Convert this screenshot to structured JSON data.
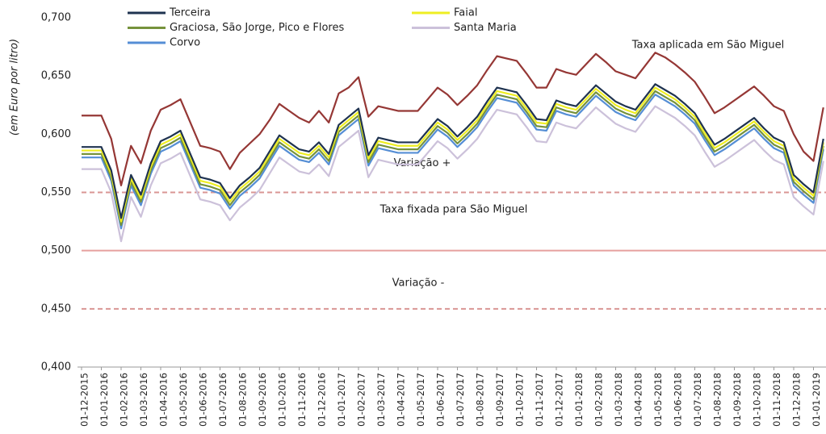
{
  "chart_data": {
    "type": "line",
    "y_label": "(em Euro por litro)",
    "categories": [
      "01-12-2015",
      null,
      "01-01-2016",
      null,
      "01-02-2016",
      null,
      "01-03-2016",
      null,
      "01-04-2016",
      null,
      "01-05-2016",
      null,
      "01-06-2016",
      null,
      "01-07-2016",
      null,
      "01-08-2016",
      null,
      "01-09-2016",
      null,
      "01-10-2016",
      null,
      "01-11-2016",
      null,
      "01-12-2016",
      null,
      "01-01-2017",
      null,
      "01-02-2017",
      null,
      "01-03-2017",
      null,
      "01-04-2017",
      null,
      "01-05-2017",
      null,
      "01-06-2017",
      null,
      "01-07-2017",
      null,
      "01-08-2017",
      null,
      "01-09-2017",
      null,
      "01-10-2017",
      null,
      "01-11-2017",
      null,
      "01-12-2017",
      null,
      "01-01-2018",
      null,
      "01-02-2018",
      null,
      "01-03-2018",
      null,
      "01-04-2018",
      null,
      "01-05-2018",
      null,
      "01-06-2018",
      null,
      "01-07-2018",
      null,
      "01-08-2018",
      null,
      "01-09-2018",
      null,
      "01-10-2018",
      null,
      "01-11-2018",
      null,
      "01-12-2018",
      null,
      "01-01-2019",
      null
    ],
    "series": [
      {
        "name": "Terceira",
        "color": "#1f3350",
        "legend": true,
        "values": [
          0.589,
          0.589,
          0.589,
          0.569,
          0.528,
          0.565,
          0.548,
          0.575,
          0.594,
          0.598,
          0.603,
          0.583,
          0.563,
          0.561,
          0.558,
          0.545,
          0.556,
          0.563,
          0.571,
          0.585,
          0.599,
          0.593,
          0.587,
          0.585,
          0.593,
          0.583,
          0.608,
          0.615,
          0.622,
          0.582,
          0.597,
          0.595,
          0.593,
          0.593,
          0.593,
          0.603,
          0.613,
          0.607,
          0.598,
          0.606,
          0.615,
          0.628,
          0.64,
          0.638,
          0.636,
          0.625,
          0.613,
          0.612,
          0.629,
          0.626,
          0.624,
          0.633,
          0.642,
          0.635,
          0.628,
          0.624,
          0.621,
          0.632,
          0.643,
          0.638,
          0.633,
          0.626,
          0.618,
          0.604,
          0.591,
          0.596,
          0.602,
          0.608,
          0.614,
          0.605,
          0.597,
          0.593,
          0.565,
          0.557,
          0.55,
          0.596
        ]
      },
      {
        "name": "Faial",
        "color": "#eeee22",
        "legend": true,
        "values": [
          0.586,
          0.586,
          0.586,
          0.566,
          0.525,
          0.562,
          0.545,
          0.572,
          0.591,
          0.595,
          0.6,
          0.58,
          0.56,
          0.558,
          0.555,
          0.542,
          0.553,
          0.56,
          0.568,
          0.582,
          0.596,
          0.59,
          0.584,
          0.582,
          0.59,
          0.58,
          0.605,
          0.612,
          0.619,
          0.579,
          0.594,
          0.592,
          0.59,
          0.59,
          0.59,
          0.6,
          0.61,
          0.604,
          0.595,
          0.603,
          0.612,
          0.625,
          0.637,
          0.635,
          0.633,
          0.622,
          0.61,
          0.609,
          0.626,
          0.623,
          0.621,
          0.63,
          0.639,
          0.632,
          0.625,
          0.621,
          0.618,
          0.629,
          0.64,
          0.635,
          0.63,
          0.623,
          0.615,
          0.601,
          0.588,
          0.593,
          0.599,
          0.605,
          0.611,
          0.602,
          0.594,
          0.59,
          0.562,
          0.554,
          0.547,
          0.593
        ]
      },
      {
        "name": "Graciosa, São Jorge, Pico e Flores",
        "color": "#76923c",
        "legend": true,
        "values": [
          0.583,
          0.583,
          0.583,
          0.563,
          0.522,
          0.559,
          0.542,
          0.569,
          0.588,
          0.592,
          0.597,
          0.577,
          0.557,
          0.555,
          0.552,
          0.539,
          0.55,
          0.557,
          0.565,
          0.579,
          0.593,
          0.587,
          0.581,
          0.579,
          0.587,
          0.577,
          0.602,
          0.609,
          0.616,
          0.576,
          0.591,
          0.589,
          0.587,
          0.587,
          0.587,
          0.597,
          0.607,
          0.601,
          0.592,
          0.6,
          0.609,
          0.622,
          0.634,
          0.632,
          0.63,
          0.619,
          0.607,
          0.606,
          0.623,
          0.62,
          0.618,
          0.627,
          0.636,
          0.629,
          0.622,
          0.618,
          0.615,
          0.626,
          0.637,
          0.632,
          0.627,
          0.62,
          0.612,
          0.598,
          0.585,
          0.59,
          0.596,
          0.602,
          0.608,
          0.599,
          0.591,
          0.587,
          0.559,
          0.551,
          0.544,
          0.59
        ]
      },
      {
        "name": "Santa Maria",
        "color": "#ccc1da",
        "legend": true,
        "values": [
          0.57,
          0.57,
          0.57,
          0.55,
          0.508,
          0.546,
          0.529,
          0.556,
          0.575,
          0.579,
          0.584,
          0.564,
          0.544,
          0.542,
          0.539,
          0.526,
          0.537,
          0.544,
          0.552,
          0.566,
          0.58,
          0.574,
          0.568,
          0.566,
          0.574,
          0.564,
          0.589,
          0.596,
          0.603,
          0.563,
          0.578,
          0.576,
          0.574,
          0.574,
          0.574,
          0.584,
          0.594,
          0.588,
          0.579,
          0.587,
          0.596,
          0.609,
          0.621,
          0.619,
          0.617,
          0.606,
          0.594,
          0.593,
          0.61,
          0.607,
          0.605,
          0.614,
          0.623,
          0.616,
          0.609,
          0.605,
          0.602,
          0.613,
          0.624,
          0.619,
          0.614,
          0.607,
          0.599,
          0.585,
          0.572,
          0.577,
          0.583,
          0.589,
          0.595,
          0.586,
          0.578,
          0.574,
          0.546,
          0.538,
          0.531,
          0.577
        ]
      },
      {
        "name": "Corvo",
        "color": "#558ed5",
        "legend": true,
        "values": [
          0.58,
          0.58,
          0.58,
          0.56,
          0.519,
          0.556,
          0.539,
          0.566,
          0.585,
          0.589,
          0.594,
          0.574,
          0.554,
          0.552,
          0.549,
          0.536,
          0.547,
          0.554,
          0.562,
          0.576,
          0.59,
          0.584,
          0.578,
          0.576,
          0.584,
          0.574,
          0.599,
          0.606,
          0.613,
          0.573,
          0.588,
          0.586,
          0.584,
          0.584,
          0.584,
          0.594,
          0.604,
          0.598,
          0.589,
          0.597,
          0.606,
          0.619,
          0.631,
          0.629,
          0.627,
          0.616,
          0.604,
          0.603,
          0.62,
          0.617,
          0.615,
          0.624,
          0.633,
          0.626,
          0.619,
          0.615,
          0.612,
          0.623,
          0.634,
          0.629,
          0.624,
          0.617,
          0.609,
          0.595,
          0.582,
          0.587,
          0.593,
          0.599,
          0.605,
          0.596,
          0.588,
          0.584,
          0.556,
          0.548,
          0.541,
          0.587
        ]
      },
      {
        "name": "Taxa aplicada em São Miguel",
        "color": "#953735",
        "legend": false,
        "values": [
          0.616,
          0.616,
          0.616,
          0.596,
          0.556,
          0.59,
          0.575,
          0.603,
          0.621,
          0.625,
          0.63,
          0.61,
          0.59,
          0.588,
          0.585,
          0.57,
          0.584,
          0.592,
          0.6,
          0.612,
          0.626,
          0.62,
          0.614,
          0.61,
          0.62,
          0.61,
          0.635,
          0.64,
          0.649,
          0.615,
          0.624,
          0.622,
          0.62,
          0.62,
          0.62,
          0.63,
          0.64,
          0.634,
          0.625,
          0.633,
          0.642,
          0.655,
          0.667,
          0.665,
          0.663,
          0.652,
          0.64,
          0.64,
          0.656,
          0.653,
          0.651,
          0.66,
          0.669,
          0.662,
          0.654,
          0.651,
          0.648,
          0.659,
          0.67,
          0.666,
          0.66,
          0.653,
          0.645,
          0.632,
          0.618,
          0.623,
          0.629,
          0.635,
          0.641,
          0.633,
          0.624,
          0.62,
          0.6,
          0.585,
          0.577,
          0.623
        ]
      }
    ],
    "reference_lines": [
      {
        "label": "Variação +",
        "value": 0.55,
        "style": "dashed",
        "color": "#d99694"
      },
      {
        "label": "Taxa fixada para São Miguel",
        "value": 0.5,
        "style": "solid",
        "color": "#e6a09e"
      },
      {
        "label": "Variação -",
        "value": 0.45,
        "style": "dashed",
        "color": "#d99694"
      }
    ],
    "ylim": [
      0.4,
      0.7
    ],
    "yticks": [
      {
        "value": 0.4,
        "label": "0,400"
      },
      {
        "value": 0.45,
        "label": "0,450"
      },
      {
        "value": 0.5,
        "label": "0,500"
      },
      {
        "value": 0.55,
        "label": "0,550"
      },
      {
        "value": 0.6,
        "label": "0,600"
      },
      {
        "value": 0.65,
        "label": "0,650"
      },
      {
        "value": 0.7,
        "label": "0,700"
      }
    ],
    "grid": false
  }
}
